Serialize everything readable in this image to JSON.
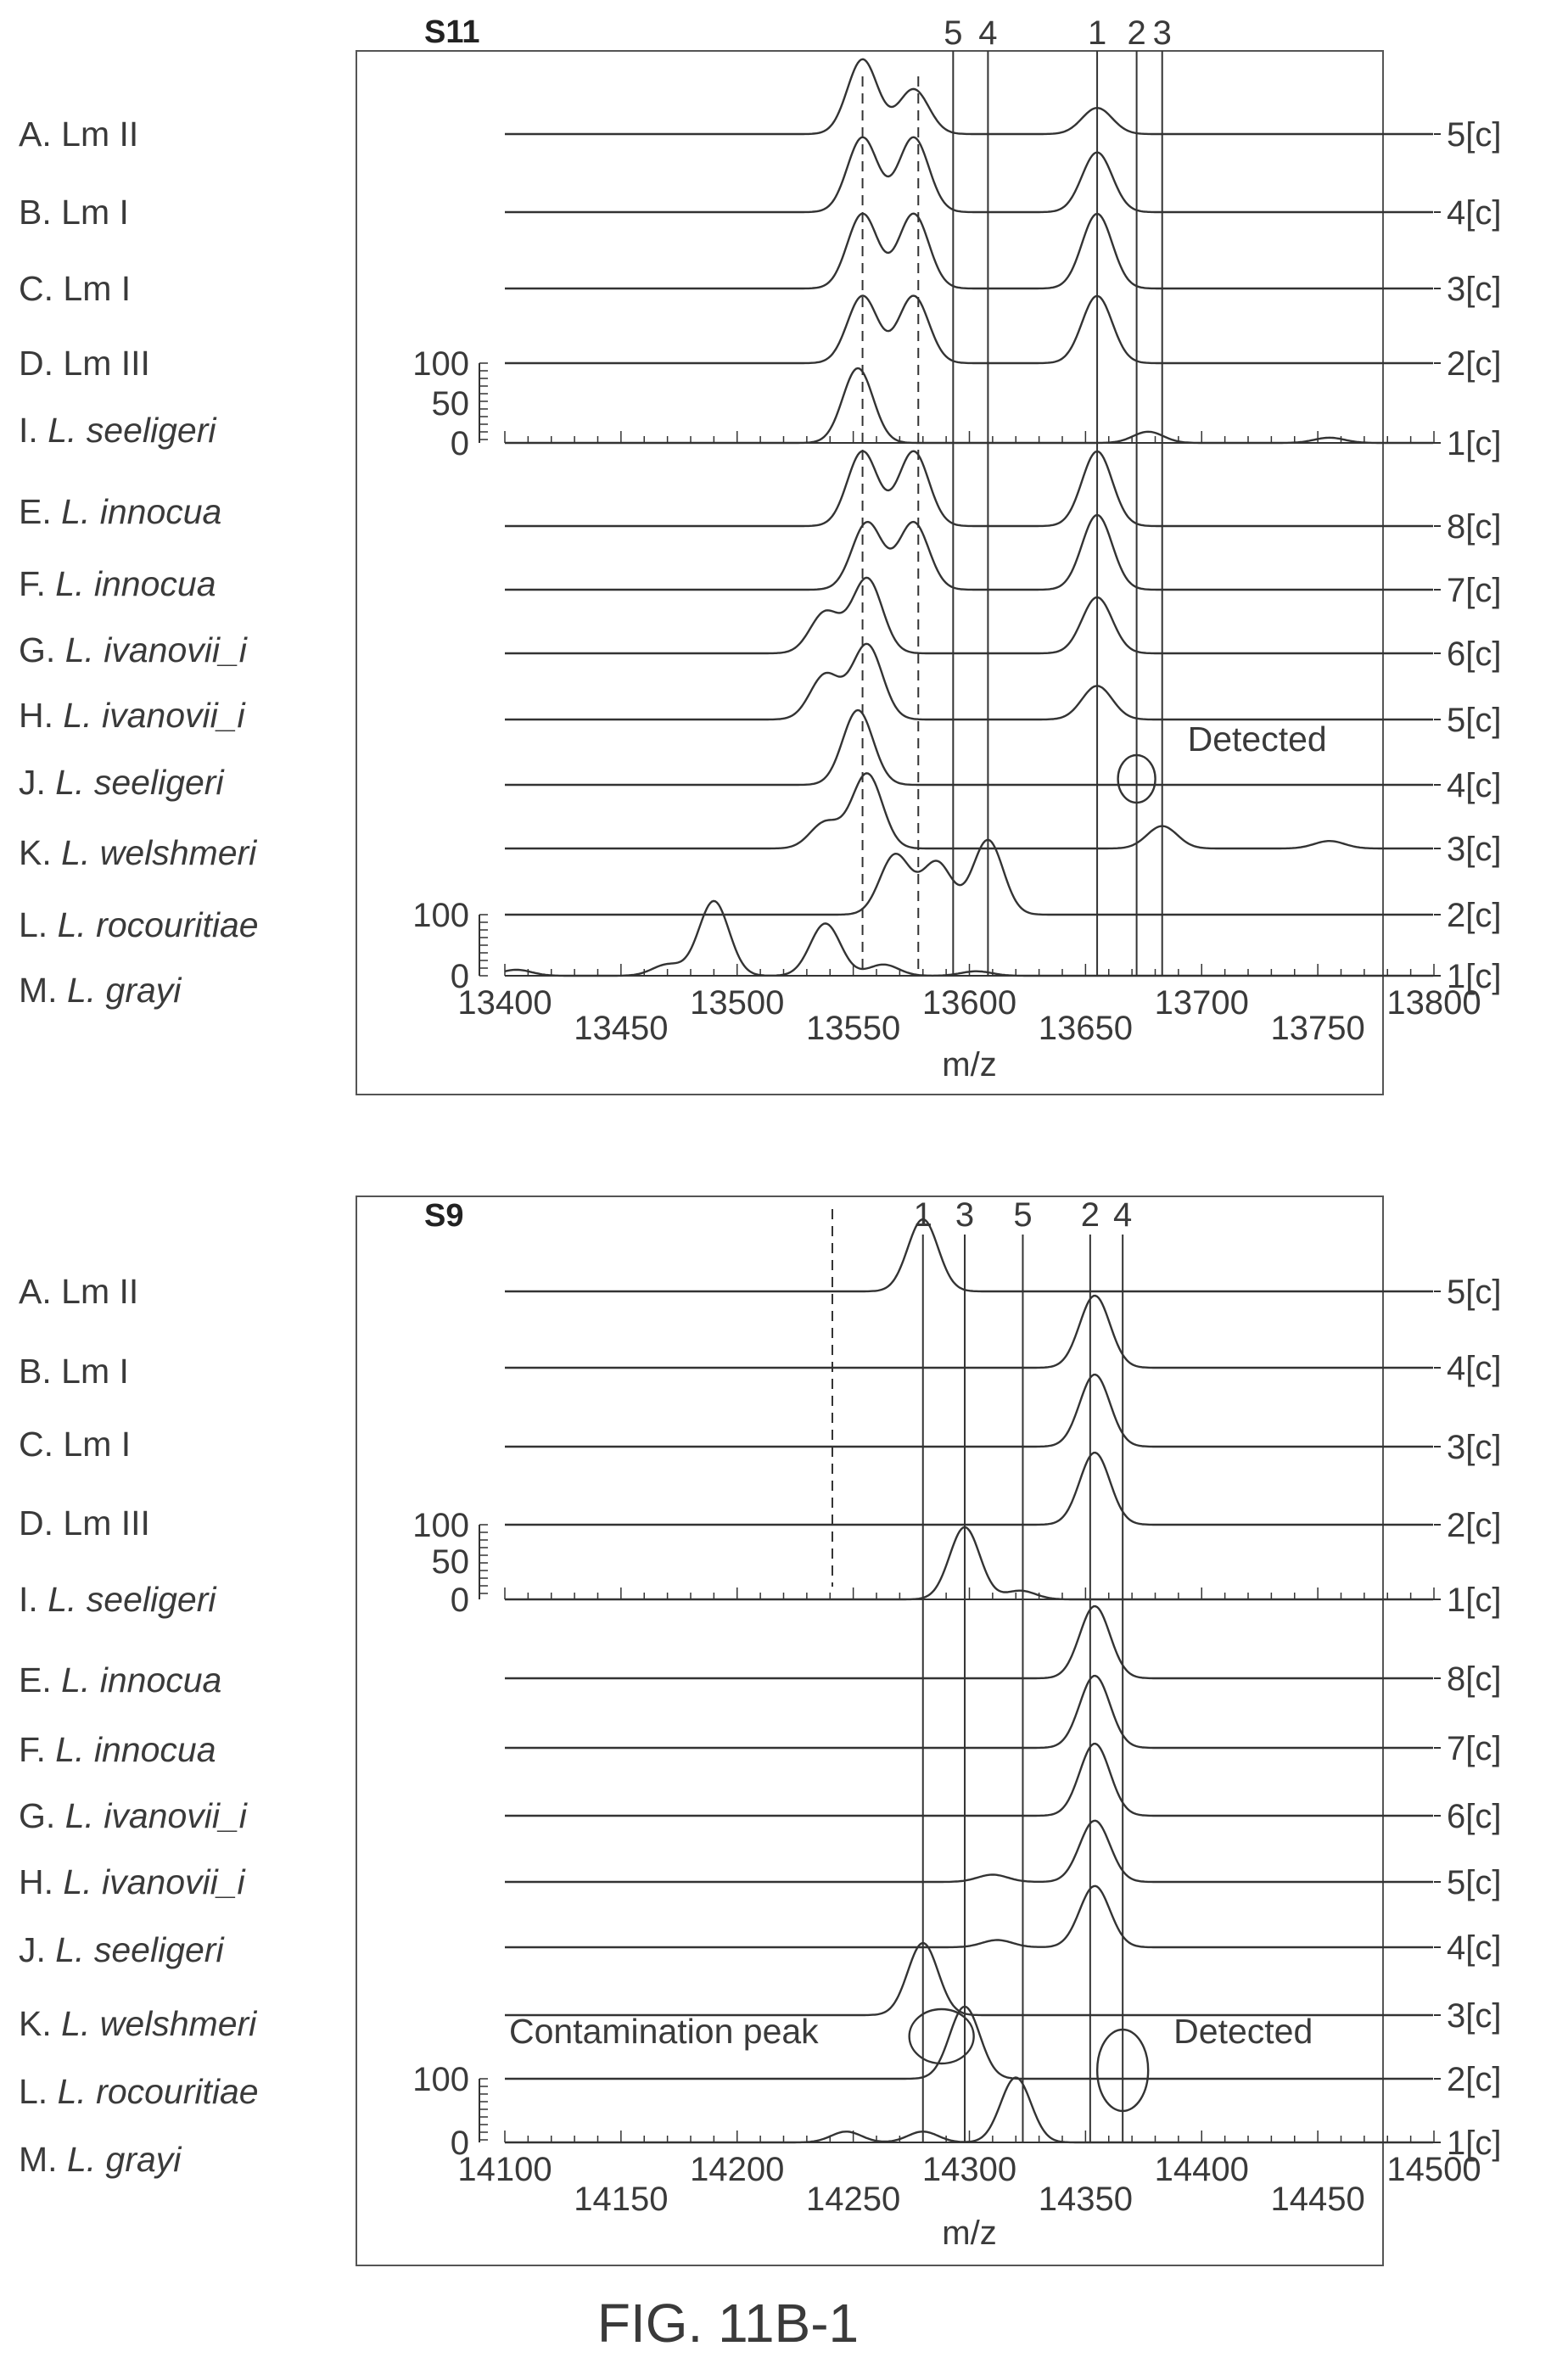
{
  "figure_caption": "FIG. 11B-1",
  "chart_data": [
    {
      "type": "line",
      "title": "S11",
      "xlabel": "m/z",
      "xlim": [
        13400,
        13800
      ],
      "x_ticks": [
        13400,
        13450,
        13500,
        13550,
        13600,
        13650,
        13700,
        13750,
        13800
      ],
      "row_labels": [
        {
          "prefix": "A. ",
          "name": "Lm II",
          "italic": false
        },
        {
          "prefix": "B. ",
          "name": "Lm I",
          "italic": false
        },
        {
          "prefix": "C. ",
          "name": "Lm I",
          "italic": false
        },
        {
          "prefix": "D. ",
          "name": "Lm III",
          "italic": false
        },
        {
          "prefix": "I. ",
          "name": "L. seeligeri",
          "italic": true
        },
        {
          "prefix": "E. ",
          "name": "L. innocua",
          "italic": true
        },
        {
          "prefix": "F. ",
          "name": "L. innocua",
          "italic": true
        },
        {
          "prefix": "G. ",
          "name": "L. ivanovii_i",
          "italic": true
        },
        {
          "prefix": "H. ",
          "name": "L. ivanovii_i",
          "italic": true
        },
        {
          "prefix": "J. ",
          "name": "L. seeligeri",
          "italic": true
        },
        {
          "prefix": "K. ",
          "name": "L. welshmeri",
          "italic": true
        },
        {
          "prefix": "L. ",
          "name": "L. rocouritiae",
          "italic": true
        },
        {
          "prefix": "M. ",
          "name": "L. grayi",
          "italic": true
        }
      ],
      "groups": [
        {
          "y_ticks": [
            "100",
            "50",
            "0"
          ],
          "trace_labels": [
            "5[c]",
            "4[c]",
            "3[c]",
            "2[c]",
            "1[c]"
          ]
        },
        {
          "y_ticks": [
            "100",
            "0"
          ],
          "trace_labels": [
            "8[c]",
            "7[c]",
            "6[c]",
            "5[c]",
            "4[c]",
            "3[c]",
            "2[c]",
            "1[c]"
          ]
        }
      ],
      "marker_lines": [
        {
          "label": "5",
          "x": 13593
        },
        {
          "label": "4",
          "x": 13608
        },
        {
          "label": "1",
          "x": 13655
        },
        {
          "label": "2",
          "x": 13672
        },
        {
          "label": "3",
          "x": 13683
        }
      ],
      "dashed_lines": [
        13554,
        13578
      ],
      "annotations": [
        {
          "text": "Detected",
          "x": 13672
        }
      ],
      "series": [
        {
          "name": "A. Lm II",
          "baseline": 13400,
          "peaks": [
            {
              "x": 13554,
              "h": 1.0
            },
            {
              "x": 13576,
              "h": 0.6
            },
            {
              "x": 13655,
              "h": 0.35
            }
          ]
        },
        {
          "name": "B. Lm I",
          "peaks": [
            {
              "x": 13554,
              "h": 1.0
            },
            {
              "x": 13576,
              "h": 1.0
            },
            {
              "x": 13655,
              "h": 0.8
            }
          ]
        },
        {
          "name": "C. Lm I",
          "peaks": [
            {
              "x": 13554,
              "h": 1.0
            },
            {
              "x": 13576,
              "h": 1.0
            },
            {
              "x": 13655,
              "h": 1.0
            }
          ]
        },
        {
          "name": "D. Lm III",
          "peaks": [
            {
              "x": 13554,
              "h": 0.9
            },
            {
              "x": 13576,
              "h": 0.9
            },
            {
              "x": 13655,
              "h": 0.9
            }
          ]
        },
        {
          "name": "I. L. seeligeri",
          "peaks": [
            {
              "x": 13552,
              "h": 1.0
            },
            {
              "x": 13677,
              "h": 0.15
            },
            {
              "x": 13755,
              "h": 0.07
            }
          ]
        },
        {
          "name": "E. L. innocua",
          "peaks": [
            {
              "x": 13554,
              "h": 1.0
            },
            {
              "x": 13576,
              "h": 1.0
            },
            {
              "x": 13655,
              "h": 1.0
            }
          ]
        },
        {
          "name": "F. L. innocua",
          "peaks": [
            {
              "x": 13556,
              "h": 0.9
            },
            {
              "x": 13576,
              "h": 0.9
            },
            {
              "x": 13655,
              "h": 1.0
            }
          ]
        },
        {
          "name": "G. L. ivanovii_i",
          "peaks": [
            {
              "x": 13538,
              "h": 0.55
            },
            {
              "x": 13556,
              "h": 1.0
            },
            {
              "x": 13655,
              "h": 0.75
            }
          ]
        },
        {
          "name": "H. L. ivanovii_i",
          "peaks": [
            {
              "x": 13538,
              "h": 0.6
            },
            {
              "x": 13556,
              "h": 1.0
            },
            {
              "x": 13655,
              "h": 0.45
            }
          ]
        },
        {
          "name": "J. L. seeligeri",
          "peaks": [
            {
              "x": 13552,
              "h": 1.0
            }
          ]
        },
        {
          "name": "K. L. welshmeri",
          "peaks": [
            {
              "x": 13538,
              "h": 0.35
            },
            {
              "x": 13556,
              "h": 1.0
            },
            {
              "x": 13683,
              "h": 0.3
            },
            {
              "x": 13755,
              "h": 0.1
            }
          ]
        },
        {
          "name": "L. L. rocouritiae",
          "peaks": [
            {
              "x": 13568,
              "h": 0.8
            },
            {
              "x": 13586,
              "h": 0.7
            },
            {
              "x": 13608,
              "h": 1.0
            }
          ]
        },
        {
          "name": "M. L. grayi",
          "peaks": [
            {
              "x": 13405,
              "h": 0.08
            },
            {
              "x": 13470,
              "h": 0.15
            },
            {
              "x": 13490,
              "h": 1.0
            },
            {
              "x": 13538,
              "h": 0.7
            },
            {
              "x": 13563,
              "h": 0.15
            },
            {
              "x": 13603,
              "h": 0.06
            }
          ]
        }
      ]
    },
    {
      "type": "line",
      "title": "S9",
      "xlabel": "m/z",
      "xlim": [
        14100,
        14500
      ],
      "x_ticks": [
        14100,
        14150,
        14200,
        14250,
        14300,
        14350,
        14400,
        14450,
        14500
      ],
      "row_labels": [
        {
          "prefix": "A. ",
          "name": "Lm II",
          "italic": false
        },
        {
          "prefix": "B. ",
          "name": "Lm I",
          "italic": false
        },
        {
          "prefix": "C. ",
          "name": "Lm I",
          "italic": false
        },
        {
          "prefix": "D. ",
          "name": "Lm III",
          "italic": false
        },
        {
          "prefix": "I. ",
          "name": "L. seeligeri",
          "italic": true
        },
        {
          "prefix": "E. ",
          "name": "L. innocua",
          "italic": true
        },
        {
          "prefix": "F. ",
          "name": "L. innocua",
          "italic": true
        },
        {
          "prefix": "G. ",
          "name": "L. ivanovii_i",
          "italic": true
        },
        {
          "prefix": "H. ",
          "name": "L. ivanovii_i",
          "italic": true
        },
        {
          "prefix": "J. ",
          "name": "L. seeligeri",
          "italic": true
        },
        {
          "prefix": "K. ",
          "name": "L. welshmeri",
          "italic": true
        },
        {
          "prefix": "L. ",
          "name": "L. rocouritiae",
          "italic": true
        },
        {
          "prefix": "M. ",
          "name": "L. grayi",
          "italic": true
        }
      ],
      "groups": [
        {
          "y_ticks": [
            "100",
            "50",
            "0"
          ],
          "trace_labels": [
            "5[c]",
            "4[c]",
            "3[c]",
            "2[c]",
            "1[c]"
          ]
        },
        {
          "y_ticks": [
            "100",
            "0"
          ],
          "trace_labels": [
            "8[c]",
            "7[c]",
            "6[c]",
            "5[c]",
            "4[c]",
            "3[c]",
            "2[c]",
            "1[c]"
          ]
        }
      ],
      "marker_lines": [
        {
          "label": "1",
          "x": 14280
        },
        {
          "label": "3",
          "x": 14298
        },
        {
          "label": "5",
          "x": 14323
        },
        {
          "label": "2",
          "x": 14352
        },
        {
          "label": "4",
          "x": 14366
        }
      ],
      "dashed_lines": [
        14241
      ],
      "annotations": [
        {
          "text": "Contamination peak",
          "x": 14288
        },
        {
          "text": "Detected",
          "x": 14366
        }
      ],
      "series": [
        {
          "name": "A. Lm II",
          "peaks": [
            {
              "x": 14280,
              "h": 1.0
            }
          ]
        },
        {
          "name": "B. Lm I",
          "peaks": [
            {
              "x": 14354,
              "h": 1.0
            }
          ]
        },
        {
          "name": "C. Lm I",
          "peaks": [
            {
              "x": 14354,
              "h": 1.0
            }
          ]
        },
        {
          "name": "D. Lm III",
          "peaks": [
            {
              "x": 14354,
              "h": 1.0
            }
          ]
        },
        {
          "name": "I. L. seeligeri",
          "peaks": [
            {
              "x": 14298,
              "h": 1.0
            },
            {
              "x": 14322,
              "h": 0.12
            }
          ]
        },
        {
          "name": "E. L. innocua",
          "peaks": [
            {
              "x": 14354,
              "h": 1.0
            }
          ]
        },
        {
          "name": "F. L. innocua",
          "peaks": [
            {
              "x": 14354,
              "h": 1.0
            }
          ]
        },
        {
          "name": "G. L. ivanovii_i",
          "peaks": [
            {
              "x": 14354,
              "h": 1.0
            }
          ]
        },
        {
          "name": "H. L. ivanovii_i",
          "peaks": [
            {
              "x": 14310,
              "h": 0.1
            },
            {
              "x": 14354,
              "h": 0.85
            }
          ]
        },
        {
          "name": "J. L. seeligeri",
          "peaks": [
            {
              "x": 14312,
              "h": 0.1
            },
            {
              "x": 14354,
              "h": 0.85
            }
          ]
        },
        {
          "name": "K. L. welshmeri",
          "peaks": [
            {
              "x": 14280,
              "h": 1.0
            }
          ]
        },
        {
          "name": "L. L. rocouritiae",
          "peaks": [
            {
              "x": 14298,
              "h": 1.0
            }
          ]
        },
        {
          "name": "M. L. grayi",
          "peaks": [
            {
              "x": 14247,
              "h": 0.15
            },
            {
              "x": 14280,
              "h": 0.15
            },
            {
              "x": 14320,
              "h": 0.9
            }
          ]
        }
      ]
    }
  ]
}
